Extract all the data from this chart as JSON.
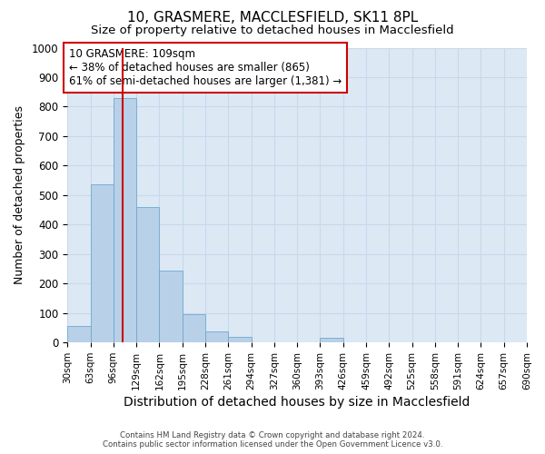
{
  "title": "10, GRASMERE, MACCLESFIELD, SK11 8PL",
  "subtitle": "Size of property relative to detached houses in Macclesfield",
  "xlabel": "Distribution of detached houses by size in Macclesfield",
  "ylabel": "Number of detached properties",
  "footer_line1": "Contains HM Land Registry data © Crown copyright and database right 2024.",
  "footer_line2": "Contains public sector information licensed under the Open Government Licence v3.0.",
  "bin_edges": [
    30,
    63,
    96,
    129,
    162,
    195,
    228,
    261,
    294,
    327,
    360,
    393,
    426,
    459,
    492,
    525,
    558,
    591,
    624,
    657,
    690
  ],
  "bar_heights": [
    55,
    535,
    830,
    460,
    245,
    95,
    38,
    20,
    0,
    0,
    0,
    15,
    0,
    0,
    0,
    0,
    0,
    0,
    0,
    0
  ],
  "bar_color": "#b8d0e8",
  "bar_edge_color": "#6fa8d0",
  "grid_color": "#c8d8ec",
  "background_color": "#dce9f5",
  "ylim": [
    0,
    1000
  ],
  "redline_x": 109,
  "annotation_text": "10 GRASMERE: 109sqm\n← 38% of detached houses are smaller (865)\n61% of semi-detached houses are larger (1,381) →",
  "annotation_box_color": "white",
  "annotation_border_color": "#cc0000",
  "redline_color": "#cc0000",
  "title_fontsize": 11,
  "subtitle_fontsize": 9.5,
  "ylabel_fontsize": 9,
  "xlabel_fontsize": 10
}
